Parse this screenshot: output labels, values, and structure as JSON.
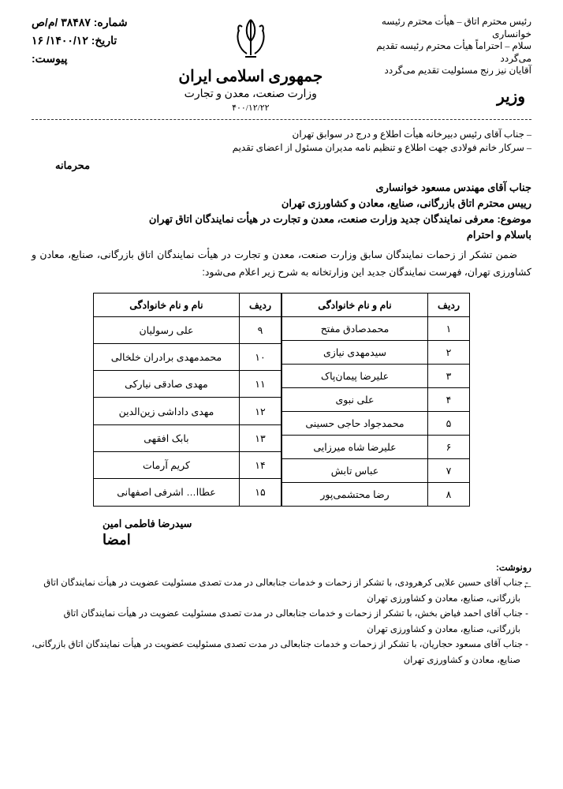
{
  "meta": {
    "number_label": "شماره:",
    "number_value": "۳۸۴۸۷ /م/ص",
    "date_label": "تاریخ:",
    "date_value": "۱۴۰۰/۱۲/ ۱۶",
    "attachment_label": "پیوست:"
  },
  "header": {
    "country": "جمهوری اسلامی ایران",
    "ministry": "وزارت صنعت، معدن و تجارت",
    "scribble_date": "۴۰۰/۱۲/۲۲"
  },
  "handwritten": {
    "line1": "رئیس محترم اتاق – هیأت محترم رئیسه خوانساری",
    "line2": "سلام – احتراماً هیأت محترم رئیسه تقدیم می‌گردد",
    "line3": "آقایان نیز رنج مسئولیت تقدیم می‌گردد",
    "vazir": "وزیر",
    "line4": "– جناب آقای رئیس دبیرخانه هیأت اطلاع و درج در سوابق تهران",
    "line5": "– سرکار خانم فولادی جهت اطلاع و تنظیم نامه مدیران مسئول از اعضای تقدیم"
  },
  "labels": {
    "confidential": "محرمانه"
  },
  "letter": {
    "recipient1": "جناب آقای مهندس مسعود خوانساری",
    "recipient2": "رییس محترم اتاق بازرگانی، صنایع، معادن و کشاورزی تهران",
    "subject_label": "موضوع:",
    "subject": "معرفی نمایندگان جدید وزارت صنعت، معدن و تجارت در هیأت نمایندگان اتاق تهران",
    "greeting": "باسلام و احترام",
    "body": "ضمن تشکر از زحمات نمایندگان سابق وزارت صنعت، معدن و تجارت در هیأت نمایندگان اتاق بازرگانی، صنایع، معادن و کشاورزی تهران، فهرست نمایندگان جدید این وزارتخانه به شرح زیر اعلام می‌شود:"
  },
  "table": {
    "col_idx": "ردیف",
    "col_name": "نام و نام خانوادگی",
    "left": [
      {
        "idx": "۱",
        "name": "محمدصادق مفتح"
      },
      {
        "idx": "۲",
        "name": "سیدمهدی نیازی"
      },
      {
        "idx": "۳",
        "name": "علیرضا پیمان‌پاک"
      },
      {
        "idx": "۴",
        "name": "علی نبوی"
      },
      {
        "idx": "۵",
        "name": "محمدجواد حاجی حسینی"
      },
      {
        "idx": "۶",
        "name": "علیرضا شاه میرزایی"
      },
      {
        "idx": "۷",
        "name": "عباس تابش"
      },
      {
        "idx": "۸",
        "name": "رضا محتشمی‌پور"
      }
    ],
    "right": [
      {
        "idx": "۹",
        "name": "علی رسولیان"
      },
      {
        "idx": "۱۰",
        "name": "محمدمهدی برادران خلخالی"
      },
      {
        "idx": "۱۱",
        "name": "مهدی صادقی نیارکی"
      },
      {
        "idx": "۱۲",
        "name": "مهدی داداشی زین‌الدین"
      },
      {
        "idx": "۱۳",
        "name": "بابک افقهی"
      },
      {
        "idx": "۱۴",
        "name": "کریم آرمات"
      },
      {
        "idx": "۱۵",
        "name": "عطاا… اشرفی اصفهانی"
      }
    ]
  },
  "signature": {
    "name": "سیدرضا فاطمی امین",
    "scribble": "امضا"
  },
  "cc": {
    "title": "رونوشت:",
    "items": [
      "- جناب آقای حسین علایی کرهرودی، با تشکر از زحمات و خدمات جنابعالی در مدت تصدی مسئولیت عضویت در هیأت نمایندگان اتاق بازرگانی، صنایع، معادن و کشاورزی تهران",
      "- جناب آقای احمد فیاض بخش، با تشکر از زحمات و خدمات جنابعالی در مدت تصدی مسئولیت عضویت در هیأت نمایندگان اتاق بازرگانی، صنایع، معادن و کشاورزی تهران",
      "- جناب آقای مسعود حجاریان، با تشکر از زحمات و خدمات جنابعالی در مدت تصدی مسئولیت عضویت در هیأت نمایندگان اتاق بازرگانی، صنایع، معادن و کشاورزی تهران"
    ]
  }
}
